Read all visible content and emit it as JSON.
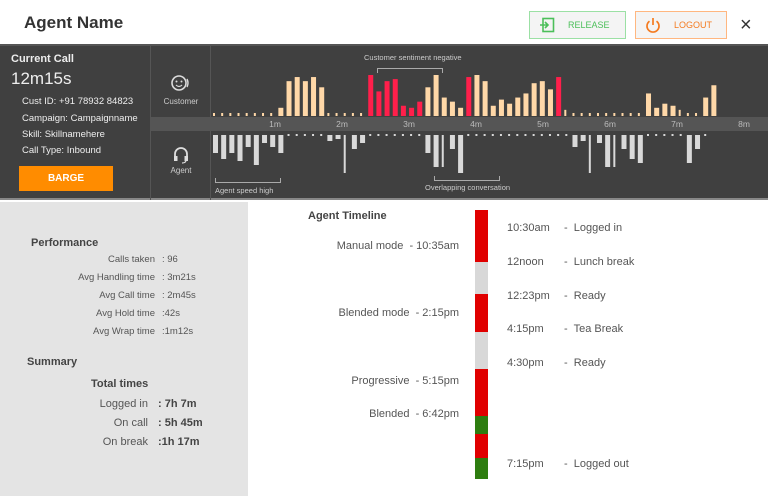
{
  "header": {
    "title": "Agent Name",
    "release_label": "RELEASE",
    "logout_label": "LOGOUT",
    "close_icon": "×"
  },
  "current_call": {
    "heading": "Current Call",
    "duration": "12m15s",
    "cust_id": "Cust ID: +91 78932 84823",
    "campaign": "Campaign: Campaignname",
    "skill": "Skill: Skillnamehere",
    "call_type": "Call Type: Inbound",
    "barge_label": "BARGE"
  },
  "speakers": {
    "customer": "Customer",
    "agent": "Agent"
  },
  "chart_data": {
    "type": "bar",
    "x_ticks": [
      "1m",
      "2m",
      "3m",
      "4m",
      "5m",
      "6m",
      "7m",
      "8m"
    ],
    "annotations": {
      "customer": "Customer sentiment negative",
      "agent_speed": "Agent speed high",
      "overlap": "Overlapping conversation"
    },
    "colors": {
      "customer": "#ffd8a8",
      "negative": "#ff1f4b",
      "agent": "#d9d9d9"
    },
    "customer": [
      0,
      0,
      0,
      0,
      0,
      0,
      0,
      0,
      2,
      8.5,
      9.5,
      8.5,
      9.5,
      7,
      0,
      0,
      0,
      0,
      0,
      [
        10,
        "n"
      ],
      [
        6,
        "n"
      ],
      [
        8.5,
        "n"
      ],
      [
        9,
        "n"
      ],
      [
        2.5,
        "n"
      ],
      [
        2,
        "n"
      ],
      [
        3.5,
        "n"
      ],
      7,
      10,
      4.5,
      3.5,
      2,
      [
        9.5,
        "n"
      ],
      10,
      8.5,
      2.5,
      4,
      3,
      4.5,
      5.5,
      8,
      8.5,
      6.5,
      [
        9.5,
        "n"
      ],
      1.5,
      0,
      0,
      0,
      0,
      0,
      0,
      0,
      0,
      0,
      5.5,
      2,
      3,
      2.5,
      1.5,
      0,
      0,
      4.5,
      7.5
    ],
    "agent": [
      4.5,
      6,
      4.5,
      6.5,
      3,
      7.5,
      2,
      3,
      4.5,
      0,
      0,
      0,
      0,
      0,
      1.5,
      1,
      9.5,
      3.5,
      2,
      0,
      0,
      0,
      0,
      0,
      0,
      0,
      4.5,
      8,
      8,
      3.5,
      9.5,
      0,
      0,
      0,
      0,
      0,
      0,
      0,
      0,
      0,
      0,
      0,
      0,
      0,
      3,
      1.5,
      9.5,
      2,
      8,
      8,
      3.5,
      6,
      7,
      0,
      0,
      0,
      0,
      0,
      7,
      3.5,
      0
    ]
  },
  "performance": {
    "heading": "Performance",
    "rows": [
      {
        "label": "Calls taken",
        "value": ": 96"
      },
      {
        "label": "Avg Handling time",
        "value": ": 3m21s"
      },
      {
        "label": "Avg Call time",
        "value": ": 2m45s"
      },
      {
        "label": "Avg Hold time",
        "value": ":42s"
      },
      {
        "label": "Avg Wrap time",
        "value": ":1m12s"
      }
    ]
  },
  "summary": {
    "heading": "Summary",
    "sub": "Total times",
    "rows": [
      {
        "label": "Logged in",
        "value": ": 7h 7m"
      },
      {
        "label": "On call",
        "value": ": 5h 45m"
      },
      {
        "label": "On break",
        "value": ":1h 17m"
      }
    ]
  },
  "timeline": {
    "heading": "Agent Timeline",
    "modes": [
      "Manual mode  - 10:35am",
      "Blended mode  - 2:15pm",
      "Progressive  - 5:15pm",
      "Blended  - 6:42pm"
    ],
    "events": [
      {
        "time": "10:30am",
        "label": "-  Logged in"
      },
      {
        "time": "12noon",
        "label": "-  Lunch break"
      },
      {
        "time": "12:23pm",
        "label": "-  Ready"
      },
      {
        "time": "4:15pm",
        "label": "-  Tea Break"
      },
      {
        "time": "4:30pm",
        "label": "-  Ready"
      },
      {
        "time": "7:15pm",
        "label": "-  Logged out"
      }
    ],
    "segments": [
      {
        "state": "busy",
        "color": "#e00000"
      },
      {
        "state": "break",
        "color": "#d8d8d8"
      },
      {
        "state": "busy",
        "color": "#e00000"
      },
      {
        "state": "break",
        "color": "#d8d8d8"
      },
      {
        "state": "busy",
        "color": "#e00000"
      },
      {
        "state": "ready",
        "color": "#2e7d10"
      },
      {
        "state": "busy",
        "color": "#e00000"
      },
      {
        "state": "ready",
        "color": "#2e7d10"
      }
    ]
  }
}
